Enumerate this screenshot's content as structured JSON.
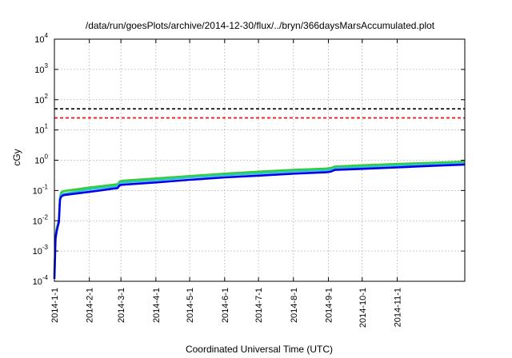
{
  "chart_data": {
    "type": "line",
    "title": "/data/run/goesPlots/archive/2014-12-30/flux/../bryn/366daysMarsAccumulated.plot",
    "xlabel": "Coordinated Universal Time (UTC)",
    "ylabel": "cGy",
    "y_scale": "log",
    "ylim": [
      0.0001,
      10000
    ],
    "y_ticks": [
      {
        "base": "10",
        "exp": "-4",
        "value": 0.0001
      },
      {
        "base": "10",
        "exp": "-3",
        "value": 0.001
      },
      {
        "base": "10",
        "exp": "-2",
        "value": 0.01
      },
      {
        "base": "10",
        "exp": "-1",
        "value": 0.1
      },
      {
        "base": "10",
        "exp": "0",
        "value": 1
      },
      {
        "base": "10",
        "exp": "1",
        "value": 10
      },
      {
        "base": "10",
        "exp": "2",
        "value": 100
      },
      {
        "base": "10",
        "exp": "3",
        "value": 1000
      },
      {
        "base": "10",
        "exp": "4",
        "value": 10000
      }
    ],
    "xlim": [
      "2014-01-01",
      "2014-12-31"
    ],
    "x_ticks": [
      "2014-1-1",
      "2014-2-1",
      "2014-3-1",
      "2014-4-1",
      "2014-5-1",
      "2014-6-1",
      "2014-7-1",
      "2014-8-1",
      "2014-9-1",
      "2014-10-1",
      "2014-11-1"
    ],
    "grid": true,
    "reference_lines": [
      {
        "value": 50,
        "color": "#000000",
        "style": "dashed"
      },
      {
        "value": 25,
        "color": "#ff0000",
        "style": "dashed"
      }
    ],
    "series": [
      {
        "color": "#33cc33",
        "x": [
          "2014-01-01",
          "2014-01-02",
          "2014-01-03",
          "2014-01-04",
          "2014-01-05",
          "2014-01-06",
          "2014-01-07",
          "2014-01-08",
          "2014-01-09",
          "2014-02-01",
          "2014-02-22",
          "2014-02-26",
          "2014-02-28",
          "2014-03-02",
          "2014-04-01",
          "2014-05-01",
          "2014-06-01",
          "2014-07-01",
          "2014-08-01",
          "2014-08-30",
          "2014-09-03",
          "2014-09-07",
          "2014-10-01",
          "2014-11-01",
          "2014-12-01",
          "2014-12-31"
        ],
        "y": [
          0.00015,
          0.003,
          0.0055,
          0.0075,
          0.011,
          0.06,
          0.085,
          0.09,
          0.095,
          0.125,
          0.155,
          0.16,
          0.2,
          0.21,
          0.25,
          0.3,
          0.36,
          0.42,
          0.48,
          0.53,
          0.55,
          0.62,
          0.68,
          0.75,
          0.82,
          0.9
        ]
      },
      {
        "color": "#2ec4c4",
        "x": [
          "2014-01-06",
          "2014-01-07",
          "2014-02-01",
          "2014-02-26",
          "2014-02-28",
          "2014-03-02",
          "2014-04-01",
          "2014-05-01",
          "2014-06-01",
          "2014-07-01",
          "2014-08-01",
          "2014-08-30",
          "2014-09-03",
          "2014-09-07",
          "2014-10-01",
          "2014-11-01",
          "2014-12-01",
          "2014-12-31"
        ],
        "y": [
          0.055,
          0.075,
          0.11,
          0.14,
          0.18,
          0.185,
          0.22,
          0.27,
          0.32,
          0.37,
          0.43,
          0.47,
          0.49,
          0.55,
          0.6,
          0.67,
          0.73,
          0.8
        ]
      },
      {
        "color": "#0000ee",
        "x": [
          "2014-01-01",
          "2014-01-02",
          "2014-01-03",
          "2014-01-04",
          "2014-01-05",
          "2014-01-06",
          "2014-01-07",
          "2014-01-08",
          "2014-01-09",
          "2014-02-01",
          "2014-02-22",
          "2014-02-26",
          "2014-02-28",
          "2014-03-02",
          "2014-04-01",
          "2014-05-01",
          "2014-06-01",
          "2014-07-01",
          "2014-08-01",
          "2014-08-30",
          "2014-09-03",
          "2014-09-07",
          "2014-10-01",
          "2014-11-01",
          "2014-12-01",
          "2014-12-31"
        ],
        "y": [
          0.00012,
          0.0025,
          0.0045,
          0.0065,
          0.009,
          0.05,
          0.063,
          0.066,
          0.07,
          0.09,
          0.115,
          0.12,
          0.15,
          0.155,
          0.185,
          0.225,
          0.27,
          0.31,
          0.36,
          0.4,
          0.42,
          0.48,
          0.52,
          0.58,
          0.65,
          0.72
        ]
      }
    ]
  }
}
